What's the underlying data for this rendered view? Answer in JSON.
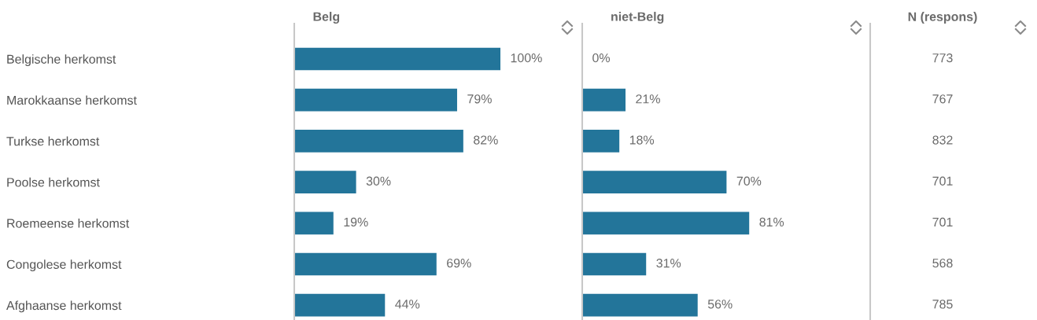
{
  "chart_data": [
    {
      "type": "bar",
      "orientation": "horizontal",
      "title": "Belg",
      "categories": [
        "Belgische herkomst",
        "Marokkaanse herkomst",
        "Turkse herkomst",
        "Poolse herkomst",
        "Roemeense herkomst",
        "Congolese herkomst",
        "Afghaanse herkomst"
      ],
      "values": [
        100,
        79,
        82,
        30,
        19,
        69,
        44
      ],
      "color": "#23759a",
      "value_labels": [
        "100%",
        "79%",
        "82%",
        "30%",
        "19%",
        "69%",
        "44%"
      ],
      "tick_labels": "y"
    },
    {
      "type": "bar",
      "orientation": "horizontal",
      "title": "niet-Belg",
      "values": [
        0,
        21,
        18,
        70,
        81,
        31,
        56
      ],
      "color": "#23759a",
      "value_labels": [
        "0%",
        "21%",
        "18%",
        "70%",
        "81%",
        "31%",
        "56%"
      ]
    },
    {
      "type": "other",
      "title": "N (respons)",
      "values": [
        773,
        767,
        832,
        701,
        701,
        568,
        785
      ],
      "data_labels": true
    }
  ]
}
